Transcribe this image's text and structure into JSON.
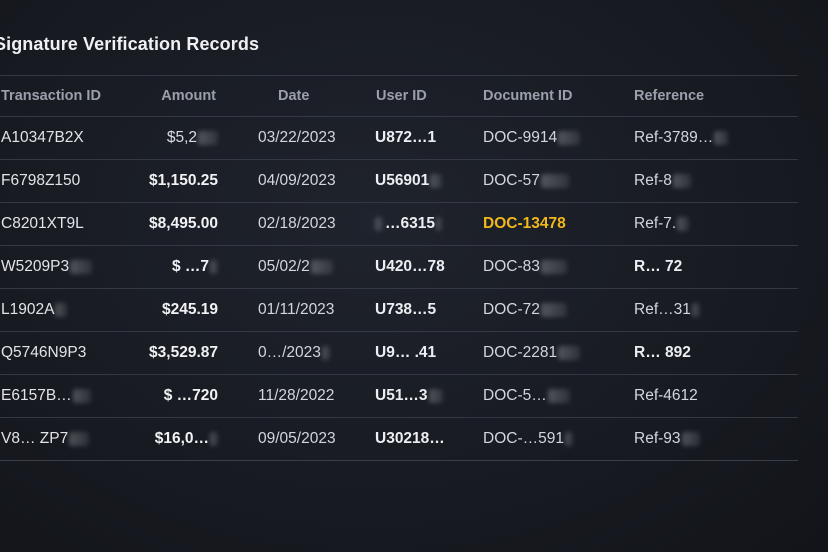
{
  "title": "Signature Verification Records",
  "columns": [
    "Transaction ID",
    "Amount",
    "Date",
    "User ID",
    "Document ID",
    "Reference"
  ],
  "rows": [
    {
      "txn": "A10347B2X",
      "amount": "$5,2",
      "date": "03/22/2023",
      "user": "U872…1",
      "doc": "DOC-9914",
      "ref": "Ref-3789…"
    },
    {
      "txn": "F6798Z150",
      "amount": "$1,150.25",
      "date": "04/09/2023",
      "user": "U56901",
      "doc": "DOC-57",
      "ref": "Ref-8"
    },
    {
      "txn": "C8201XT9L",
      "amount": "$8,495.00",
      "date": "02/18/2023",
      "user": "…6315",
      "doc": "DOC-13478",
      "ref": "Ref-7."
    },
    {
      "txn": "W5209P3",
      "amount": "$ …7",
      "date": "05/02/2",
      "user": "U420…78",
      "doc": "DOC-83",
      "ref": "R… 72"
    },
    {
      "txn": "L1902A",
      "amount": "$245.19",
      "date": "01/11/2023",
      "user": "U738…5",
      "doc": "DOC-72",
      "ref": "Ref…31"
    },
    {
      "txn": "Q5746N9P3",
      "amount": "$3,529.87",
      "date": "0…/2023",
      "user": "U9… .41",
      "doc": "DOC-2281",
      "ref": "R… 892"
    },
    {
      "txn": "E6157B…",
      "amount": "$ …720",
      "date": "11/28/2022",
      "user": "U51…3",
      "doc": "DOC-5…",
      "ref": "Ref-4612"
    },
    {
      "txn": "V8… ZP7",
      "amount": "$16,0…",
      "date": "09/05/2023",
      "user": "U30218…",
      "doc": "DOC-…591",
      "ref": "Ref-93"
    }
  ],
  "colors": {
    "highlight": "#f1b81c",
    "background": "#181b22"
  }
}
